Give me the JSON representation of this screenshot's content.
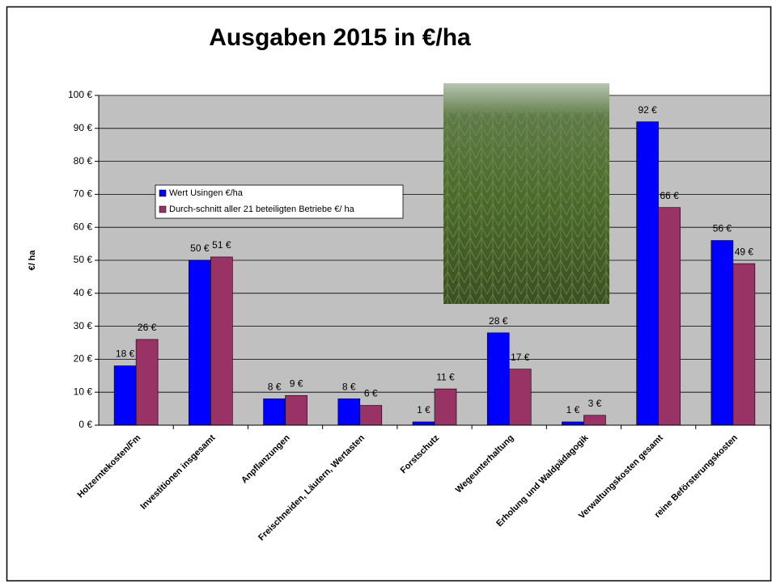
{
  "chart_data": {
    "type": "bar",
    "title": "Ausgaben 2015 in  €/ha",
    "ylabel": "€/ ha",
    "categories": [
      "Holzerntekosten/Fm",
      "Investitionen insgesamt",
      "Anpflanzungen",
      "Freischneiden, Läutern, Wertasten",
      "Forstschutz",
      "Wegeunterhaltung",
      "Erholung und Waldpädagogik",
      "Verwaltungskosten gesamt",
      "reine Beförsterungskosten"
    ],
    "series": [
      {
        "name": "Wert Usingen €/ha",
        "color": "#0000ff",
        "values": [
          18,
          50,
          8,
          8,
          1,
          28,
          1,
          92,
          56
        ],
        "value_labels": [
          "18 €",
          "50 €",
          "8 €",
          "8 €",
          "1 €",
          "28 €",
          "1 €",
          "92 €",
          "56 €"
        ]
      },
      {
        "name": "Durch-schnitt aller 21 beteiligten Betriebe €/ ha",
        "color": "#993366",
        "values": [
          26,
          51,
          9,
          6,
          11,
          17,
          3,
          66,
          49
        ],
        "value_labels": [
          "26 €",
          "51 €",
          "9 €",
          "6 €",
          "11 €",
          "17 €",
          "3 €",
          "66 €",
          "49 €"
        ]
      }
    ],
    "ylim": [
      0,
      100
    ],
    "yticks": [
      {
        "value": 0,
        "label": "0 €"
      },
      {
        "value": 10,
        "label": "10 €"
      },
      {
        "value": 20,
        "label": "20 €"
      },
      {
        "value": 30,
        "label": "30 €"
      },
      {
        "value": 40,
        "label": "40 €"
      },
      {
        "value": 50,
        "label": "50 €"
      },
      {
        "value": 60,
        "label": "60 €"
      },
      {
        "value": 70,
        "label": "70 €"
      },
      {
        "value": 80,
        "label": "80 €"
      },
      {
        "value": 90,
        "label": "90 €"
      },
      {
        "value": 100,
        "label": "100 €"
      }
    ],
    "grid": true
  }
}
